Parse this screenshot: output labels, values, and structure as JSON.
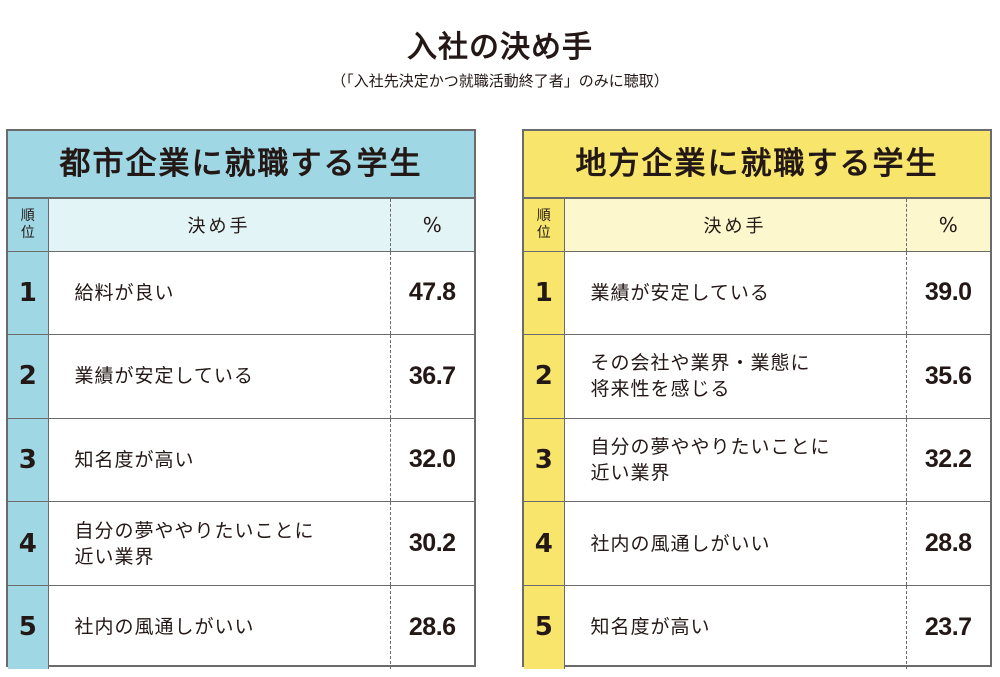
{
  "title": "入社の決め手",
  "subtitle": "（「入社先決定かつ就職活動終了者」のみに聴取）",
  "headers": {
    "rank": "順位",
    "reason": "決め手",
    "percent": "%"
  },
  "panels": [
    {
      "title": "都市企業に就職する学生",
      "accent": "#9fd8e4",
      "rows": [
        {
          "rank": "1",
          "reason": "給料が良い",
          "percent": "47.8"
        },
        {
          "rank": "2",
          "reason": "業績が安定している",
          "percent": "36.7"
        },
        {
          "rank": "3",
          "reason": "知名度が高い",
          "percent": "32.0"
        },
        {
          "rank": "4",
          "reason": "自分の夢ややりたいことに\n近い業界",
          "percent": "30.2"
        },
        {
          "rank": "5",
          "reason": "社内の風通しがいい",
          "percent": "28.6"
        }
      ]
    },
    {
      "title": "地方企業に就職する学生",
      "accent": "#f7e66b",
      "rows": [
        {
          "rank": "1",
          "reason": "業績が安定している",
          "percent": "39.0"
        },
        {
          "rank": "2",
          "reason": "その会社や業界・業態に\n将来性を感じる",
          "percent": "35.6"
        },
        {
          "rank": "3",
          "reason": "自分の夢ややりたいことに\n近い業界",
          "percent": "32.2"
        },
        {
          "rank": "4",
          "reason": "社内の風通しがいい",
          "percent": "28.8"
        },
        {
          "rank": "5",
          "reason": "知名度が高い",
          "percent": "23.7"
        }
      ]
    }
  ]
}
